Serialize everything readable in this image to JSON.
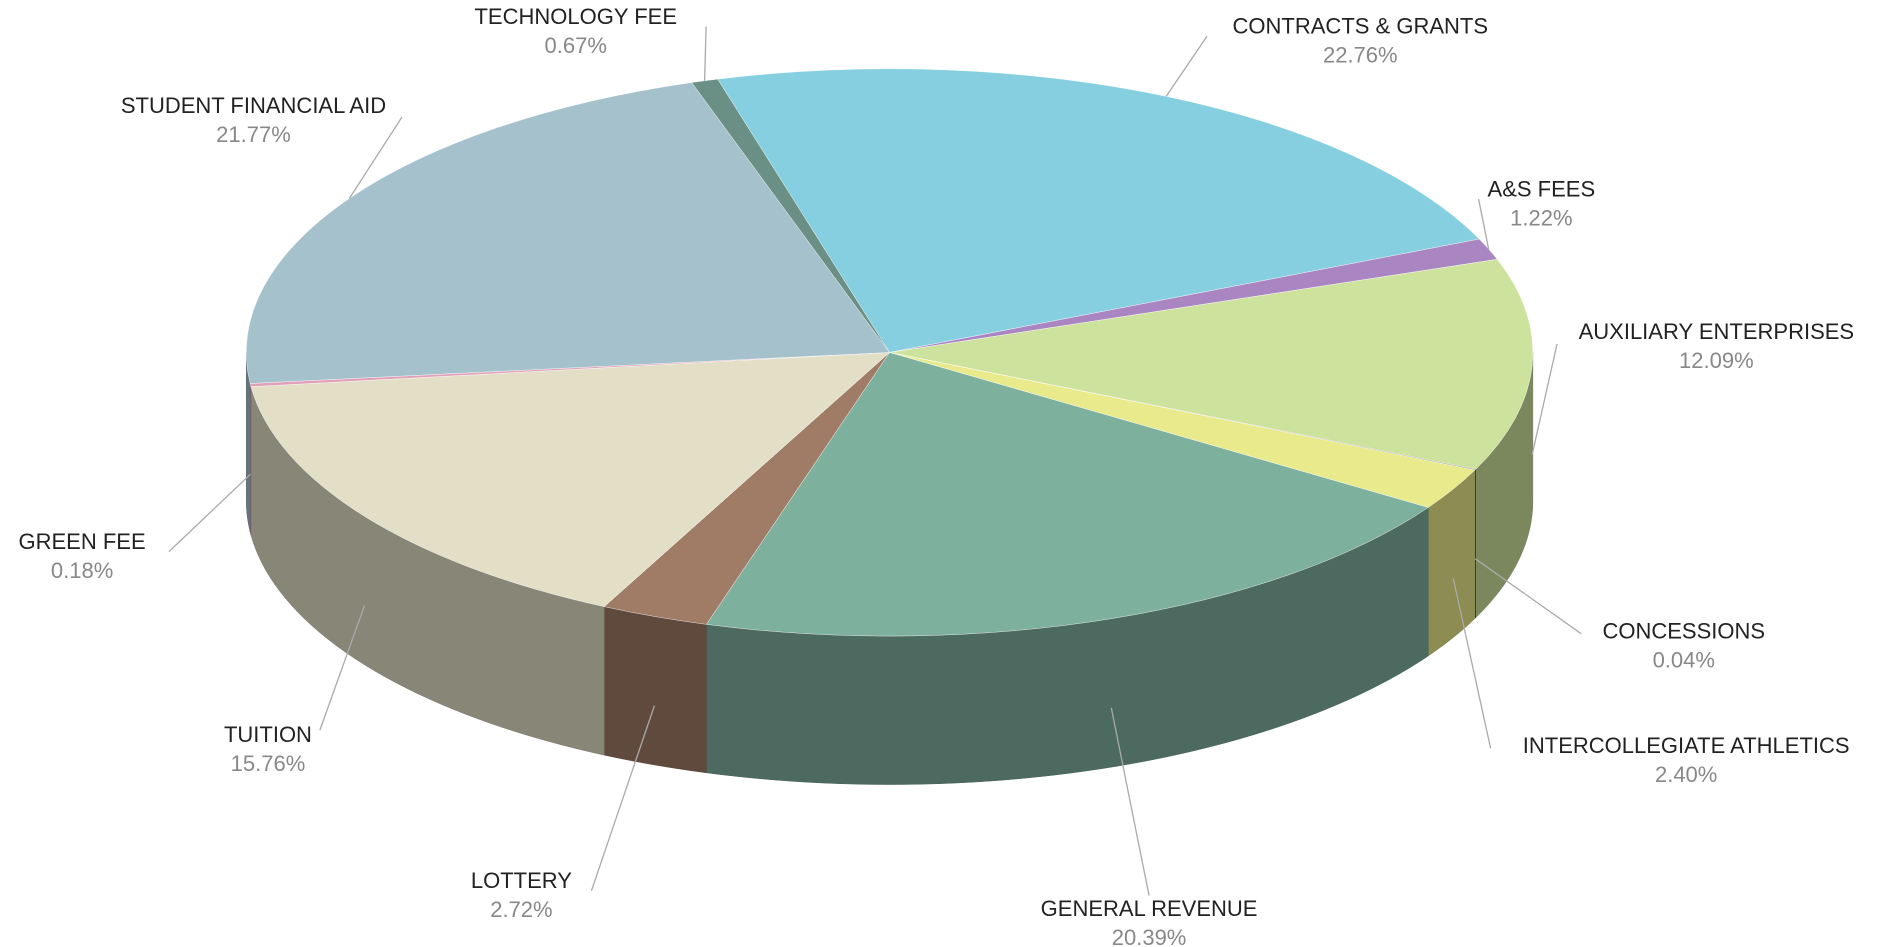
{
  "chart_data": {
    "type": "pie3d",
    "categories": [
      "CONTRACTS & GRANTS",
      "A&S FEES",
      "AUXILIARY ENTERPRISES",
      "CONCESSIONS",
      "INTERCOLLEGIATE ATHLETICS",
      "GENERAL REVENUE",
      "LOTTERY",
      "TUITION",
      "GREEN FEE",
      "STUDENT FINANCIAL AID",
      "TECHNOLOGY FEE"
    ],
    "values": [
      22.76,
      1.22,
      12.09,
      0.04,
      2.4,
      20.39,
      2.72,
      15.76,
      0.18,
      21.77,
      0.67
    ],
    "value_labels": [
      "22.76%",
      "1.22%",
      "12.09%",
      "0.04%",
      "2.40%",
      "20.39%",
      "2.72%",
      "15.76%",
      "0.18%",
      "21.77%",
      "0.67%"
    ],
    "colors": [
      "#86cfe0",
      "#a985c2",
      "#cde29c",
      "#3c4447",
      "#e9ea8b",
      "#7eb09e",
      "#a07c66",
      "#e2dfc6",
      "#e0a0b8",
      "#a5c1cc",
      "#6a8f84"
    ]
  }
}
